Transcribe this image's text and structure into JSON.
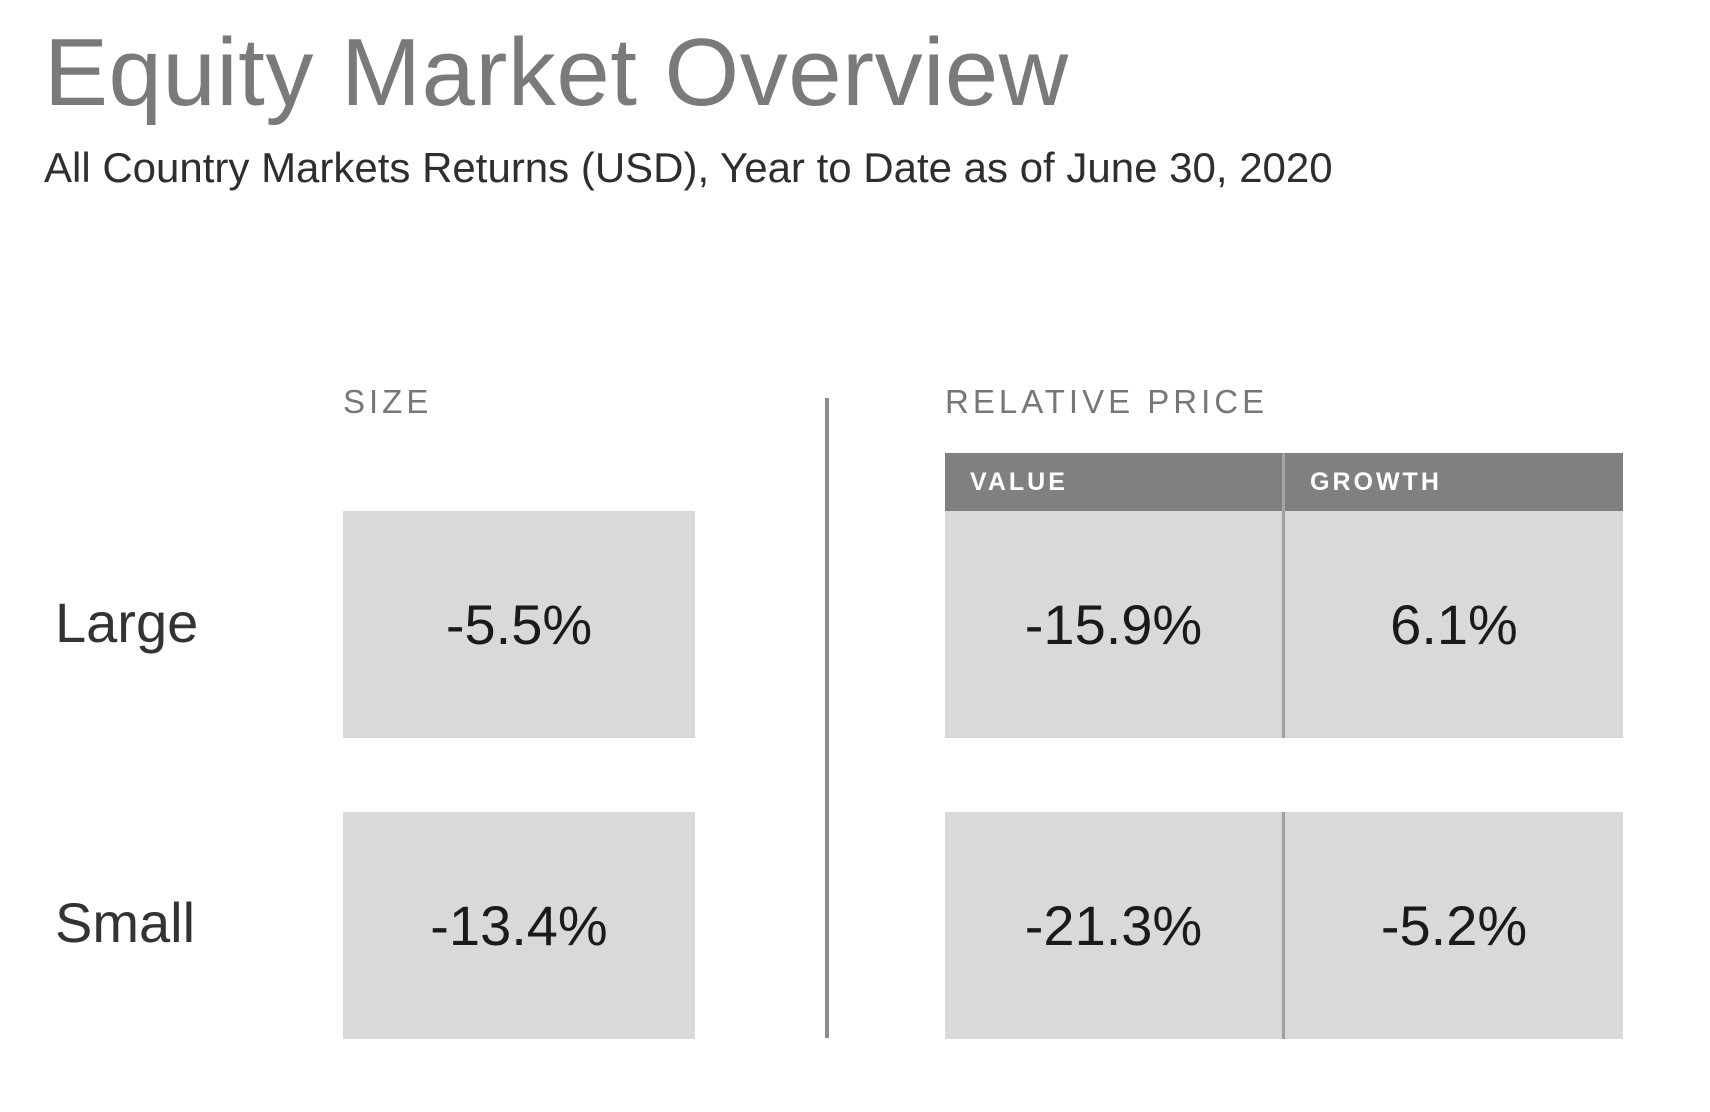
{
  "header": {
    "title": "Equity Market Overview",
    "subtitle": "All Country Markets Returns (USD), Year to Date as of June 30, 2020"
  },
  "chart_data": {
    "type": "table",
    "sections": {
      "size_label": "SIZE",
      "relative_price_label": "RELATIVE PRICE"
    },
    "columns": [
      "VALUE",
      "GROWTH"
    ],
    "rows": [
      {
        "label": "Large",
        "size": "-5.5%",
        "value": "-15.9%",
        "growth": "6.1%"
      },
      {
        "label": "Small",
        "size": "-13.4%",
        "value": "-21.3%",
        "growth": "-5.2%"
      }
    ],
    "numeric": {
      "Large": {
        "size": -5.5,
        "value": -15.9,
        "growth": 6.1
      },
      "Small": {
        "size": -13.4,
        "value": -21.3,
        "growth": -5.2
      }
    }
  },
  "colors": {
    "cell_background": "#d9d9d9",
    "header_background": "#808080",
    "title_color": "#7a7a7a",
    "divider_color": "#8c8c8c"
  }
}
